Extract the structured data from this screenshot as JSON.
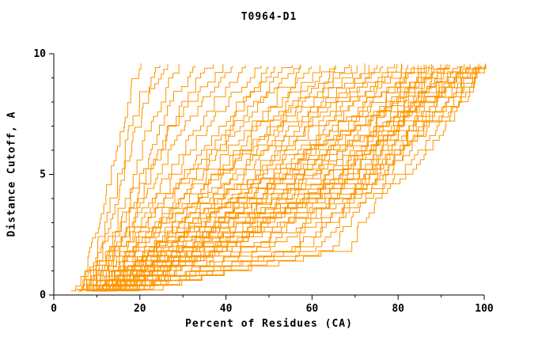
{
  "chart_data": {
    "type": "line",
    "title": "T0964-D1",
    "xlabel": "Percent of Residues (CA)",
    "ylabel": "Distance Cutoff, A",
    "xlim": [
      0,
      100
    ],
    "ylim": [
      0,
      10
    ],
    "x_major_ticks": [
      0,
      20,
      40,
      60,
      80,
      100
    ],
    "x_minor_ticks": [
      10,
      30,
      50,
      70,
      90
    ],
    "y_major_ticks": [
      0,
      5,
      10
    ],
    "y_minor_ticks": [
      1,
      2,
      3,
      4,
      6,
      7,
      8,
      9
    ],
    "grid": false,
    "legend": "none",
    "line_color": "#ff9500",
    "axis_color": "#000000",
    "background": "#ffffff",
    "series_note": "Each series is a cumulative step curve: x = percent of CA residues under distance cutoff y. Anchor x-values are given at y_anchor_levels.",
    "y_anchor_levels": [
      0,
      2,
      5,
      8,
      9.6
    ],
    "y_start": 0.2,
    "y_end": 9.6,
    "series": [
      [
        5,
        9,
        13,
        17,
        20
      ],
      [
        6,
        10,
        15,
        19,
        23
      ],
      [
        5,
        11,
        16,
        21,
        26
      ],
      [
        7,
        12,
        18,
        24,
        29
      ],
      [
        6,
        13,
        20,
        27,
        33
      ],
      [
        8,
        14,
        22,
        30,
        36
      ],
      [
        5,
        12,
        21,
        31,
        39
      ],
      [
        7,
        15,
        24,
        34,
        42
      ],
      [
        6,
        14,
        26,
        37,
        45
      ],
      [
        8,
        16,
        28,
        40,
        48
      ],
      [
        7,
        17,
        30,
        43,
        51
      ],
      [
        9,
        18,
        32,
        45,
        53
      ],
      [
        6,
        15,
        31,
        46,
        55
      ],
      [
        8,
        19,
        34,
        48,
        57
      ],
      [
        7,
        18,
        35,
        50,
        59
      ],
      [
        9,
        20,
        37,
        52,
        61
      ],
      [
        8,
        21,
        38,
        53,
        63
      ],
      [
        10,
        22,
        40,
        55,
        65
      ],
      [
        7,
        19,
        39,
        56,
        67
      ],
      [
        9,
        23,
        42,
        58,
        68
      ],
      [
        8,
        22,
        43,
        59,
        70
      ],
      [
        10,
        24,
        44,
        61,
        71
      ],
      [
        9,
        25,
        46,
        62,
        73
      ],
      [
        11,
        26,
        47,
        64,
        74
      ],
      [
        8,
        23,
        46,
        65,
        76
      ],
      [
        10,
        27,
        49,
        66,
        77
      ],
      [
        9,
        26,
        50,
        68,
        78
      ],
      [
        11,
        28,
        52,
        69,
        80
      ],
      [
        10,
        29,
        53,
        70,
        81
      ],
      [
        12,
        30,
        54,
        72,
        82
      ],
      [
        9,
        27,
        53,
        73,
        84
      ],
      [
        11,
        31,
        56,
        74,
        85
      ],
      [
        10,
        30,
        57,
        75,
        86
      ],
      [
        12,
        32,
        58,
        77,
        87
      ],
      [
        11,
        33,
        60,
        78,
        88
      ],
      [
        13,
        34,
        61,
        79,
        89
      ],
      [
        10,
        31,
        60,
        80,
        90
      ],
      [
        12,
        35,
        63,
        81,
        91
      ],
      [
        11,
        34,
        64,
        83,
        92
      ],
      [
        13,
        36,
        65,
        84,
        93
      ],
      [
        12,
        37,
        67,
        85,
        94
      ],
      [
        14,
        38,
        68,
        86,
        95
      ],
      [
        11,
        35,
        67,
        87,
        96
      ],
      [
        13,
        39,
        70,
        88,
        97
      ],
      [
        12,
        38,
        71,
        89,
        98
      ],
      [
        14,
        40,
        72,
        91,
        99
      ],
      [
        13,
        41,
        74,
        92,
        100
      ],
      [
        15,
        45,
        76,
        93,
        100
      ],
      [
        12,
        50,
        80,
        94,
        100
      ],
      [
        14,
        55,
        82,
        95,
        100
      ],
      [
        10,
        62,
        72,
        80,
        86
      ],
      [
        12,
        65,
        75,
        83,
        90
      ],
      [
        9,
        55,
        68,
        76,
        83
      ],
      [
        11,
        58,
        73,
        82,
        88
      ],
      [
        13,
        68,
        78,
        85,
        91
      ],
      [
        10,
        45,
        75,
        88,
        97
      ],
      [
        8,
        40,
        66,
        86,
        98
      ],
      [
        12,
        48,
        77,
        90,
        100
      ],
      [
        9,
        30,
        55,
        85,
        99
      ],
      [
        11,
        25,
        50,
        80,
        96
      ]
    ]
  }
}
